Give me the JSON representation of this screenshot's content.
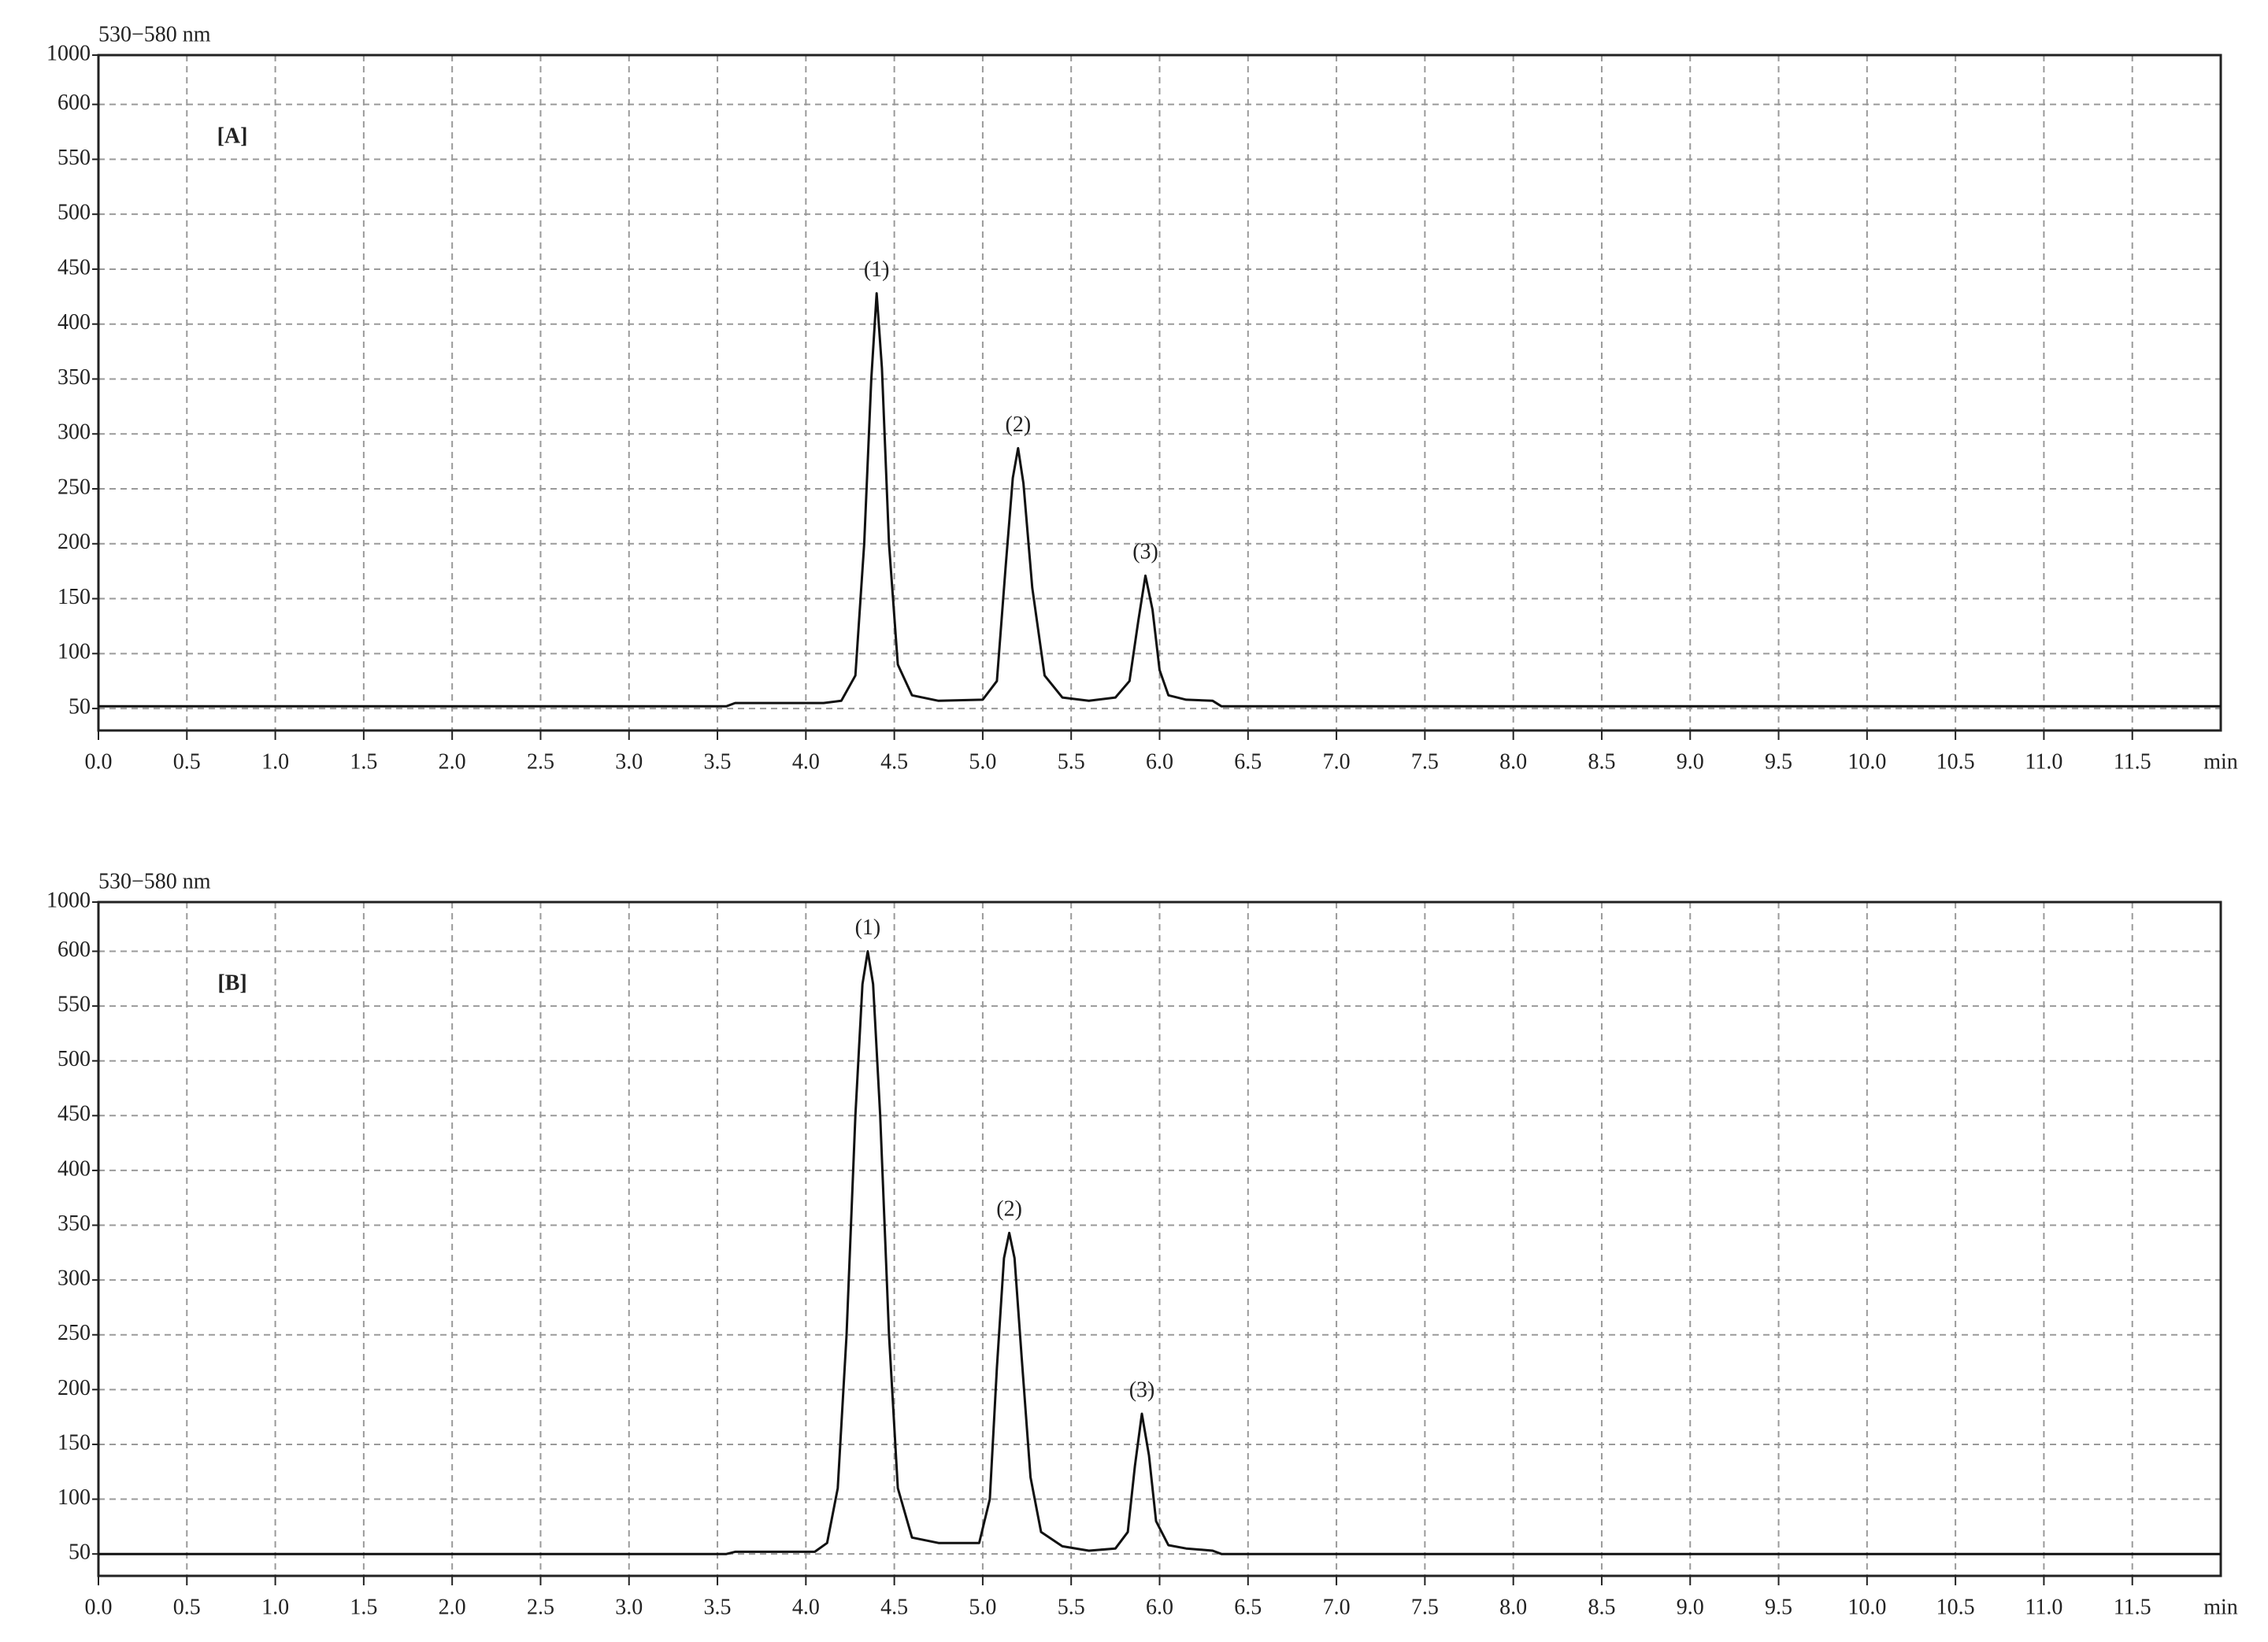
{
  "chart_data": [
    {
      "type": "line",
      "panel_label": "[A]",
      "y_label": "530−580 nm",
      "x_label": "min",
      "x": [
        0,
        3.55,
        3.6,
        4.1,
        4.2,
        4.28,
        4.33,
        4.37,
        4.4,
        4.43,
        4.47,
        4.52,
        4.6,
        4.75,
        5.0,
        5.08,
        5.13,
        5.17,
        5.2,
        5.23,
        5.28,
        5.35,
        5.45,
        5.6,
        5.75,
        5.83,
        5.88,
        5.92,
        5.96,
        6.0,
        6.05,
        6.15,
        6.3,
        6.35,
        12
      ],
      "series": [
        {
          "color": "#111111",
          "values": [
            52,
            52,
            55,
            55,
            57,
            80,
            200,
            350,
            428,
            360,
            200,
            90,
            62,
            57,
            58,
            75,
            180,
            260,
            287,
            255,
            160,
            80,
            60,
            57,
            60,
            75,
            130,
            171,
            140,
            85,
            62,
            58,
            57,
            52,
            52
          ]
        }
      ],
      "annotations": [
        {
          "text": "(1)",
          "x": 4.4
        },
        {
          "text": "(2)",
          "x": 5.2
        },
        {
          "text": "(3)",
          "x": 5.92
        }
      ],
      "xlim": [
        0,
        12
      ],
      "xticks": [
        {
          "value": 0,
          "label": "0.0"
        },
        0.5,
        {
          "value": 1,
          "label": "1.0"
        },
        1.5,
        {
          "value": 2,
          "label": "2.0"
        },
        2.5,
        {
          "value": 3,
          "label": "3.0"
        },
        3.5,
        {
          "value": 4,
          "label": "4.0"
        },
        4.5,
        {
          "value": 5,
          "label": "5.0"
        },
        5.5,
        {
          "value": 6,
          "label": "6.0"
        },
        6.5,
        {
          "value": 7,
          "label": "7.0"
        },
        7.5,
        {
          "value": 8,
          "label": "8.0"
        },
        8.5,
        {
          "value": 9,
          "label": "9.0"
        },
        9.5,
        {
          "value": 10,
          "label": "10.0"
        },
        10.5,
        {
          "value": 11,
          "label": "11.0"
        },
        11.5
      ],
      "ylim": [
        30,
        1000
      ],
      "yticks": [
        50,
        100,
        150,
        200,
        250,
        300,
        350,
        400,
        450,
        500,
        550,
        600,
        1000
      ],
      "grid": true
    },
    {
      "type": "line",
      "panel_label": "[B]",
      "y_label": "530−580 nm",
      "x_label": "min",
      "x": [
        0,
        3.55,
        3.6,
        4.05,
        4.12,
        4.18,
        4.23,
        4.28,
        4.32,
        4.35,
        4.38,
        4.42,
        4.47,
        4.52,
        4.6,
        4.75,
        4.98,
        5.04,
        5.08,
        5.12,
        5.15,
        5.18,
        5.22,
        5.27,
        5.33,
        5.45,
        5.6,
        5.75,
        5.82,
        5.86,
        5.9,
        5.94,
        5.98,
        6.05,
        6.15,
        6.3,
        6.35,
        12
      ],
      "series": [
        {
          "color": "#111111",
          "values": [
            50,
            50,
            52,
            52,
            60,
            110,
            250,
            450,
            570,
            600,
            570,
            450,
            250,
            110,
            65,
            60,
            60,
            100,
            220,
            320,
            343,
            320,
            230,
            120,
            70,
            57,
            53,
            55,
            70,
            130,
            178,
            140,
            80,
            58,
            55,
            53,
            50,
            50
          ]
        }
      ],
      "annotations": [
        {
          "text": "(1)",
          "x": 4.35
        },
        {
          "text": "(2)",
          "x": 5.15
        },
        {
          "text": "(3)",
          "x": 5.9
        }
      ],
      "xlim": [
        0,
        12
      ],
      "xticks": [
        {
          "value": 0,
          "label": "0.0"
        },
        0.5,
        {
          "value": 1,
          "label": "1.0"
        },
        1.5,
        {
          "value": 2,
          "label": "2.0"
        },
        2.5,
        {
          "value": 3,
          "label": "3.0"
        },
        3.5,
        {
          "value": 4,
          "label": "4.0"
        },
        4.5,
        {
          "value": 5,
          "label": "5.0"
        },
        5.5,
        {
          "value": 6,
          "label": "6.0"
        },
        6.5,
        {
          "value": 7,
          "label": "7.0"
        },
        7.5,
        {
          "value": 8,
          "label": "8.0"
        },
        8.5,
        {
          "value": 9,
          "label": "9.0"
        },
        9.5,
        {
          "value": 10,
          "label": "10.0"
        },
        10.5,
        {
          "value": 11,
          "label": "11.0"
        },
        11.5
      ],
      "ylim": [
        30,
        1000
      ],
      "yticks": [
        50,
        100,
        150,
        200,
        250,
        300,
        350,
        400,
        450,
        500,
        550,
        600,
        1000
      ],
      "grid": true
    }
  ]
}
